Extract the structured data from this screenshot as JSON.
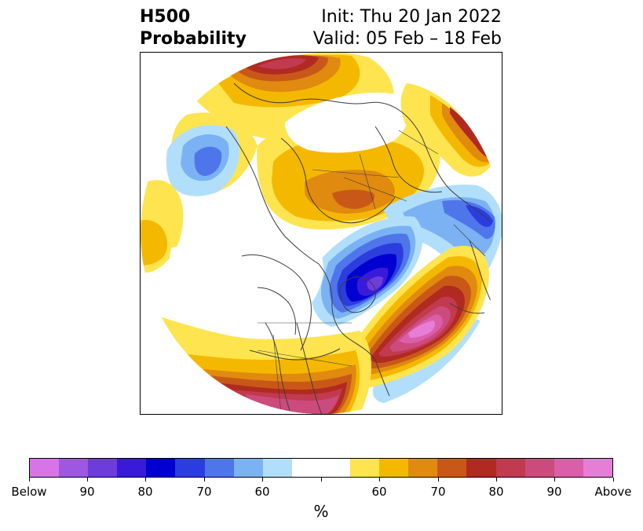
{
  "header": {
    "title_line1": "H500",
    "title_line2": "Probability",
    "init_text": "Init: Thu 20 Jan 2022",
    "valid_text": "Valid: 05 Feb – 18 Feb"
  },
  "colorbar": {
    "units": "%",
    "colors": [
      "#d775e8",
      "#9d57e0",
      "#6d3ddc",
      "#3a1ad9",
      "#0000d0",
      "#2b3ddf",
      "#4f75eb",
      "#7bb2f3",
      "#b1dffb",
      "#ffffff",
      "#fee44f",
      "#f5b800",
      "#e08a10",
      "#c95818",
      "#b02a22",
      "#c23a4f",
      "#cc4b7d",
      "#da5ea8",
      "#e77ed6"
    ],
    "tick_labels": [
      "Below",
      "90",
      "80",
      "70",
      "60",
      "",
      "60",
      "70",
      "80",
      "90",
      "Above"
    ]
  },
  "map": {
    "projection": "north-polar-stereographic",
    "colors": {
      "warm1": "#fee44f",
      "warm2": "#f5b800",
      "warm3": "#e08a10",
      "warm4": "#c95818",
      "warm5": "#b02a22",
      "warm6": "#c23a4f",
      "warm7": "#cc4b7d",
      "warm8": "#da5ea8",
      "warm9": "#e77ed6",
      "cool1": "#b1dffb",
      "cool2": "#7bb2f3",
      "cool3": "#4f75eb",
      "cool4": "#2b3ddf",
      "cool5": "#0000d0",
      "cool6": "#3a1ad9",
      "cool7": "#6d3ddc",
      "cool8": "#9d57e0",
      "coast": "#3c3c3c"
    }
  }
}
